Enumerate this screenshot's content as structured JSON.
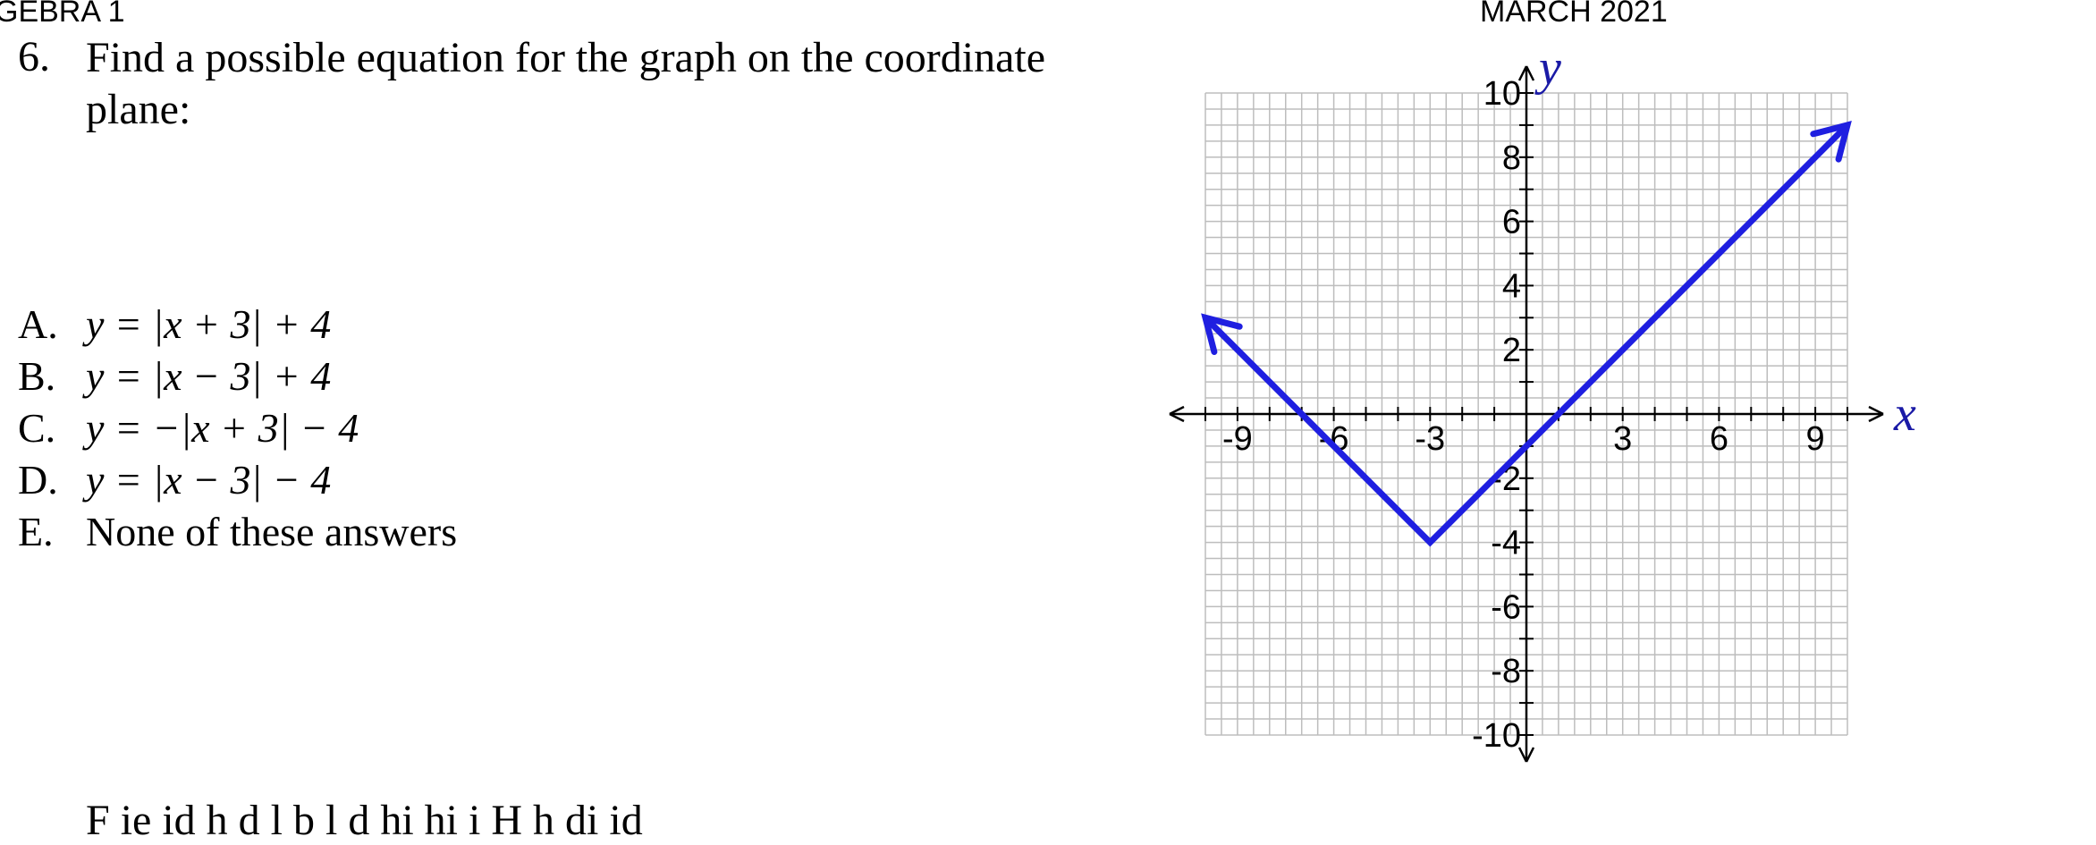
{
  "header": {
    "left": "GEBRA 1",
    "right": "MARCH 2021"
  },
  "question": {
    "number": "6.",
    "text": "Find a possible equation for the graph on the coordinate plane:"
  },
  "choices": [
    {
      "letter": "A.",
      "text": "y = |x + 3| + 4"
    },
    {
      "letter": "B.",
      "text": "y = |x − 3| + 4"
    },
    {
      "letter": "C.",
      "text": "y = −|x + 3| − 4"
    },
    {
      "letter": "D.",
      "text": "y = |x − 3| − 4"
    },
    {
      "letter": "E.",
      "text": "None of these answers"
    }
  ],
  "footer_fragment": "F                              ie   id   h    d l b l  d  hi   hi         i H                    h             di                 id",
  "chart_data": {
    "type": "line",
    "xlabel": "x",
    "ylabel": "y",
    "xlim": [
      -10,
      10
    ],
    "ylim": [
      -10,
      10
    ],
    "x_ticks": [
      -9,
      -6,
      -3,
      3,
      6,
      9
    ],
    "y_ticks": [
      10,
      8,
      6,
      4,
      2,
      -2,
      -4,
      -6,
      -8,
      -10
    ],
    "grid": true,
    "series": [
      {
        "color": "#1f1fe0",
        "points": [
          [
            -10,
            3
          ],
          [
            -3,
            -4
          ],
          [
            10,
            9
          ]
        ],
        "arrows": "both ends"
      }
    ]
  }
}
